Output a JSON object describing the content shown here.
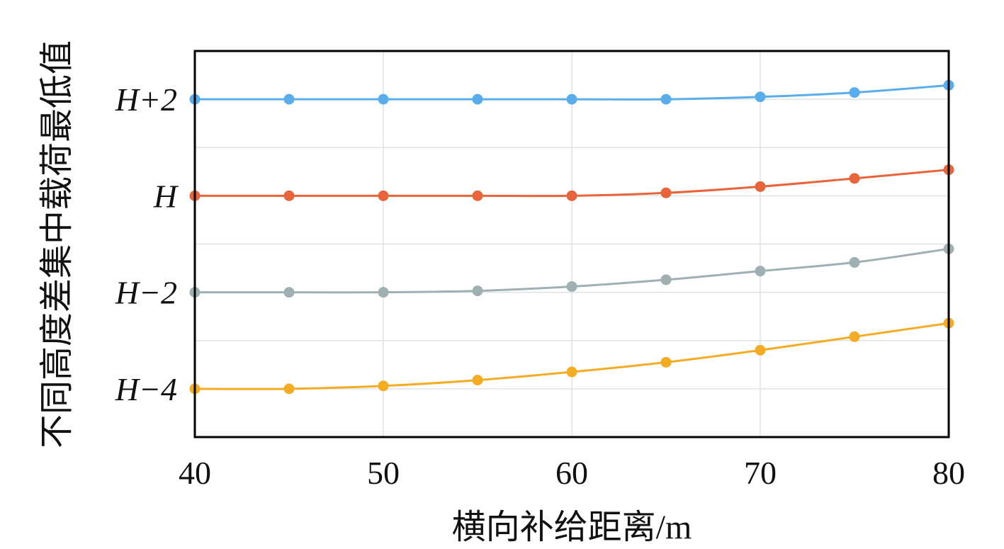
{
  "chart_data": {
    "type": "line",
    "xlabel": "横向补给距离/m",
    "ylabel": "不同高度差集中载荷最低值",
    "xlim": [
      40,
      80
    ],
    "ylim": [
      -6,
      2
    ],
    "grid": true,
    "x": [
      40,
      45,
      50,
      55,
      60,
      65,
      70,
      75,
      80
    ],
    "xticks": [
      {
        "value": 40,
        "label": "40"
      },
      {
        "value": 50,
        "label": "50"
      },
      {
        "value": 60,
        "label": "60"
      },
      {
        "value": 70,
        "label": "70"
      },
      {
        "value": 80,
        "label": "80"
      }
    ],
    "yticks": [
      {
        "value": 1,
        "label": "H+2"
      },
      {
        "value": -1,
        "label": "H"
      },
      {
        "value": -3,
        "label": "H−2"
      },
      {
        "value": -5,
        "label": "H−4"
      }
    ],
    "ygrid": [
      1,
      0,
      -1,
      -2,
      -3,
      -4,
      -5
    ],
    "series": [
      {
        "color": "#5AADEB",
        "values": [
          1,
          1,
          1,
          1,
          1,
          1,
          1.05,
          1.14,
          1.29
        ]
      },
      {
        "color": "#E8643A",
        "values": [
          -1,
          -1,
          -1,
          -1,
          -1,
          -0.94,
          -0.81,
          -0.64,
          -0.46
        ]
      },
      {
        "color": "#9FB0B2",
        "values": [
          -3,
          -3,
          -3,
          -2.97,
          -2.88,
          -2.74,
          -2.56,
          -2.38,
          -2.1
        ]
      },
      {
        "color": "#F4AC25",
        "values": [
          -5,
          -5,
          -4.94,
          -4.82,
          -4.65,
          -4.45,
          -4.2,
          -3.92,
          -3.64
        ]
      }
    ]
  }
}
